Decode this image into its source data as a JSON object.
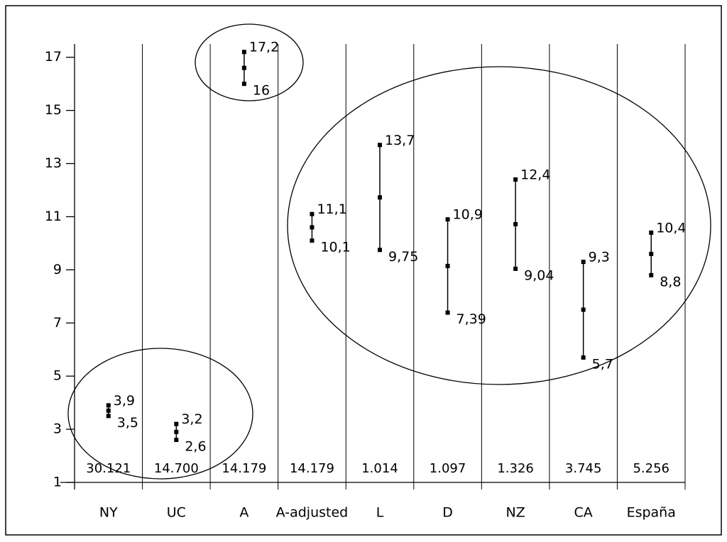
{
  "chart_data": {
    "type": "range",
    "categories": [
      "NY",
      "UC",
      "A",
      "A-adjusted",
      "L",
      "D",
      "NZ",
      "CA",
      "España"
    ],
    "sample_labels": [
      "30.121",
      "14.700",
      "14.179",
      "14.179",
      "1.014",
      "1.097",
      "1.326",
      "3.745",
      "5.256"
    ],
    "series": [
      {
        "name": "low",
        "values": [
          3.5,
          2.6,
          16,
          10.1,
          9.75,
          7.39,
          9.04,
          5.7,
          8.8
        ],
        "value_labels": [
          "3,5",
          "2,6",
          "16",
          "10,1",
          "9,75",
          "7,39",
          "9,04",
          "5,7",
          "8,8"
        ]
      },
      {
        "name": "high",
        "values": [
          3.9,
          3.2,
          17.2,
          11.1,
          13.7,
          10.9,
          12.4,
          9.3,
          10.4
        ],
        "value_labels": [
          "3,9",
          "3,2",
          "17,2",
          "11,1",
          "13,7",
          "10,9",
          "12,4",
          "9,3",
          "10,4"
        ]
      }
    ],
    "color": "#000000",
    "ylim": [
      1,
      17.5
    ],
    "yticks": [
      1,
      3,
      5,
      7,
      9,
      11,
      13,
      15,
      17
    ],
    "grid": false
  }
}
